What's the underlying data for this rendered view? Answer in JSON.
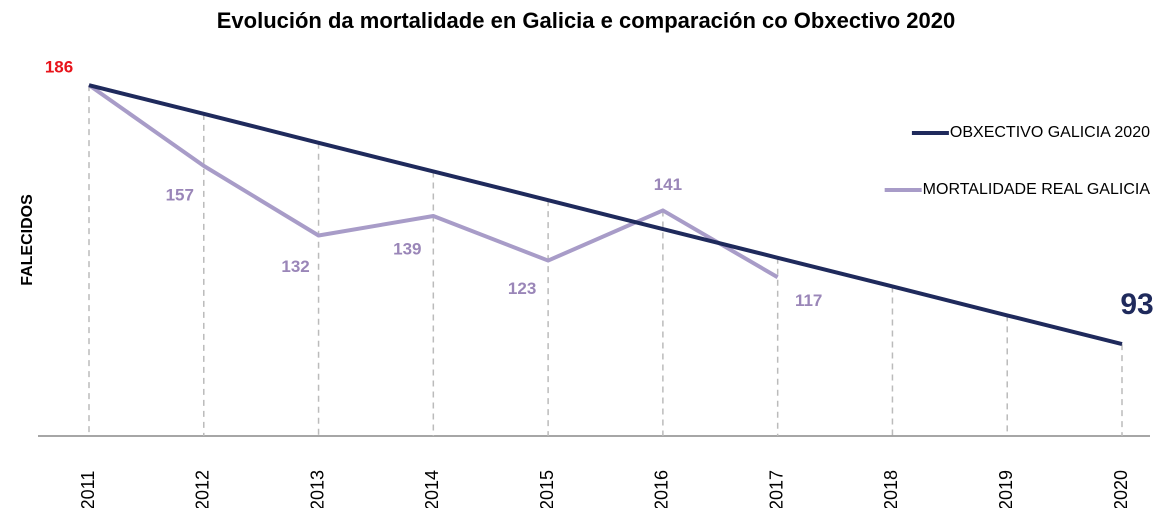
{
  "chart_data": {
    "type": "line",
    "title": "Evolución da mortalidade en Galicia e comparación co Obxectivo 2020",
    "y_label": "FALECIDOS",
    "categories": [
      "2011",
      "2012",
      "2013",
      "2014",
      "2015",
      "2016",
      "2017",
      "2018",
      "2019",
      "2020"
    ],
    "series": [
      {
        "name": "OBXECTIVO GALICIA 2020",
        "color": "#1f2a5c",
        "values": [
          186,
          175.7,
          165.3,
          155,
          144.7,
          134.3,
          124,
          113.7,
          103.3,
          93
        ]
      },
      {
        "name": "MORTALIDADE REAL GALICIA",
        "color": "#a89cc8",
        "values": [
          186,
          157,
          132,
          139,
          123,
          141,
          117,
          null,
          null,
          null
        ]
      }
    ],
    "ylim": [
      60,
      190
    ],
    "legend": "upper right"
  }
}
